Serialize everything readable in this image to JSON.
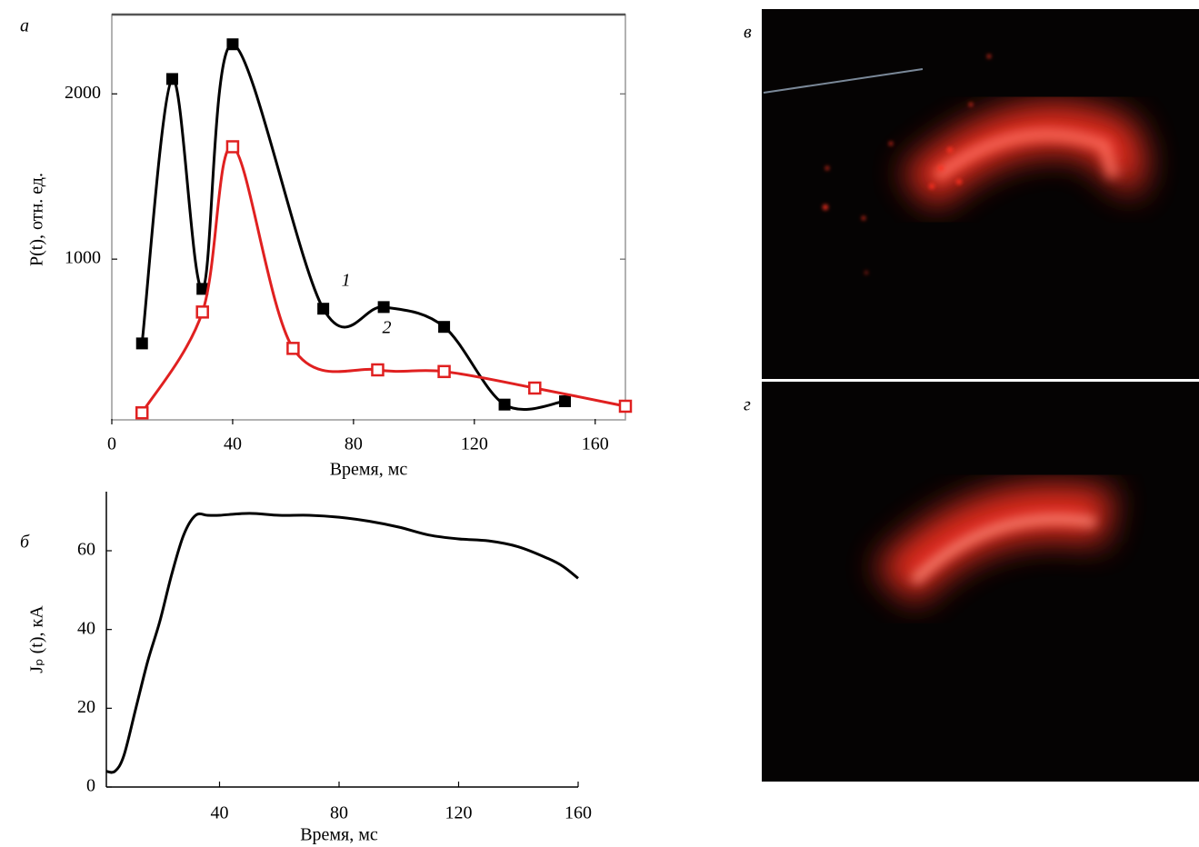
{
  "chart_data": [
    {
      "type": "line",
      "panel": "а",
      "xlabel": "Время, мс",
      "ylabel": "P(t), отн. ед.",
      "xlim": [
        0,
        170
      ],
      "ylim": [
        0,
        2480
      ],
      "xticks": [
        0,
        40,
        80,
        120,
        160
      ],
      "yticks": [
        1000,
        2000
      ],
      "series": [
        {
          "name": "1",
          "color": "#000000",
          "marker": "filled-square",
          "x": [
            10,
            20,
            30,
            40,
            70,
            90,
            110,
            130,
            150
          ],
          "values": [
            490,
            2090,
            820,
            2300,
            700,
            710,
            590,
            120,
            140
          ]
        },
        {
          "name": "2",
          "color": "#e02020",
          "marker": "open-square",
          "x": [
            10,
            30,
            40,
            60,
            88,
            110,
            140,
            170
          ],
          "values": [
            70,
            680,
            1680,
            460,
            330,
            320,
            220,
            110
          ]
        }
      ]
    },
    {
      "type": "line",
      "panel": "б",
      "xlabel": "Время, мс",
      "ylabel": "Jₚ (t), кА",
      "xlim": [
        0,
        160
      ],
      "ylim": [
        0,
        75
      ],
      "xticks": [
        40,
        80,
        120,
        160
      ],
      "yticks": [
        0,
        20,
        40,
        60
      ],
      "series": [
        {
          "color": "#000000",
          "x": [
            2,
            5,
            8,
            12,
            16,
            20,
            24,
            28,
            32,
            36,
            40,
            50,
            60,
            70,
            80,
            90,
            100,
            110,
            120,
            130,
            140,
            150,
            155,
            160
          ],
          "values": [
            4,
            4,
            8,
            20,
            32,
            42,
            54,
            64,
            69,
            69,
            69,
            69.5,
            69,
            69,
            68.5,
            67.5,
            66,
            64,
            63,
            62.5,
            61,
            58,
            56,
            53
          ]
        }
      ]
    }
  ],
  "images": [
    {
      "label": "в"
    },
    {
      "label": "г"
    }
  ]
}
